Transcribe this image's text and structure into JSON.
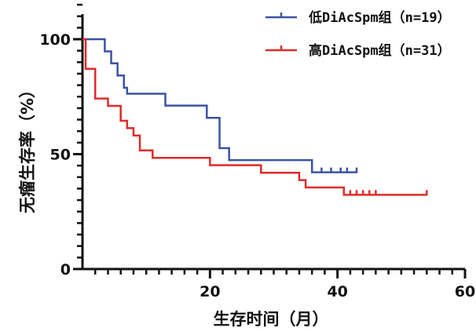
{
  "chart_data": {
    "type": "line",
    "subtype": "kaplan-meier-step",
    "xlabel": "生存时间（月）",
    "ylabel": "无瘤生存率（%）",
    "xlim": [
      0,
      60
    ],
    "ylim": [
      0,
      100
    ],
    "xticks": [
      {
        "value": 20,
        "label": "20"
      },
      {
        "value": 40,
        "label": "40"
      },
      {
        "value": 60,
        "label": "60"
      }
    ],
    "yticks": [
      {
        "value": 0,
        "label": "0"
      },
      {
        "value": 50,
        "label": "50"
      },
      {
        "value": 100,
        "label": "100"
      }
    ],
    "grid": false,
    "legend_position": "top-right",
    "series": [
      {
        "name": "低DiAcSpm组（n=19）",
        "color": "#3a53a4",
        "steps": [
          [
            0,
            100
          ],
          [
            3.5,
            94.7
          ],
          [
            4.5,
            89.5
          ],
          [
            5.5,
            84.2
          ],
          [
            6.5,
            78.9
          ],
          [
            7,
            76.3
          ],
          [
            13,
            71.1
          ],
          [
            19.5,
            65.8
          ],
          [
            21.5,
            52.6
          ],
          [
            23,
            47.4
          ],
          [
            36,
            42.1
          ]
        ],
        "end_x": 43,
        "censored": [
          [
            37.5,
            42.1
          ],
          [
            39,
            42.1
          ],
          [
            40.5,
            42.1
          ],
          [
            41.5,
            42.1
          ],
          [
            43,
            42.1
          ]
        ]
      },
      {
        "name": "高DiAcSpm组（n=31）",
        "color": "#e02b2b",
        "steps": [
          [
            0,
            100
          ],
          [
            0.5,
            87.1
          ],
          [
            2,
            74.2
          ],
          [
            4,
            71
          ],
          [
            6,
            64.5
          ],
          [
            7,
            61.3
          ],
          [
            8,
            58.1
          ],
          [
            9,
            51.6
          ],
          [
            11,
            48.4
          ],
          [
            20,
            45.2
          ],
          [
            28,
            41.9
          ],
          [
            34,
            38.7
          ],
          [
            35,
            35.5
          ],
          [
            41,
            32.3
          ]
        ],
        "end_x": 54,
        "censored": [
          [
            42,
            32.3
          ],
          [
            43,
            32.3
          ],
          [
            44,
            32.3
          ],
          [
            45,
            32.3
          ],
          [
            46,
            32.3
          ],
          [
            54,
            32.3
          ]
        ]
      }
    ]
  }
}
